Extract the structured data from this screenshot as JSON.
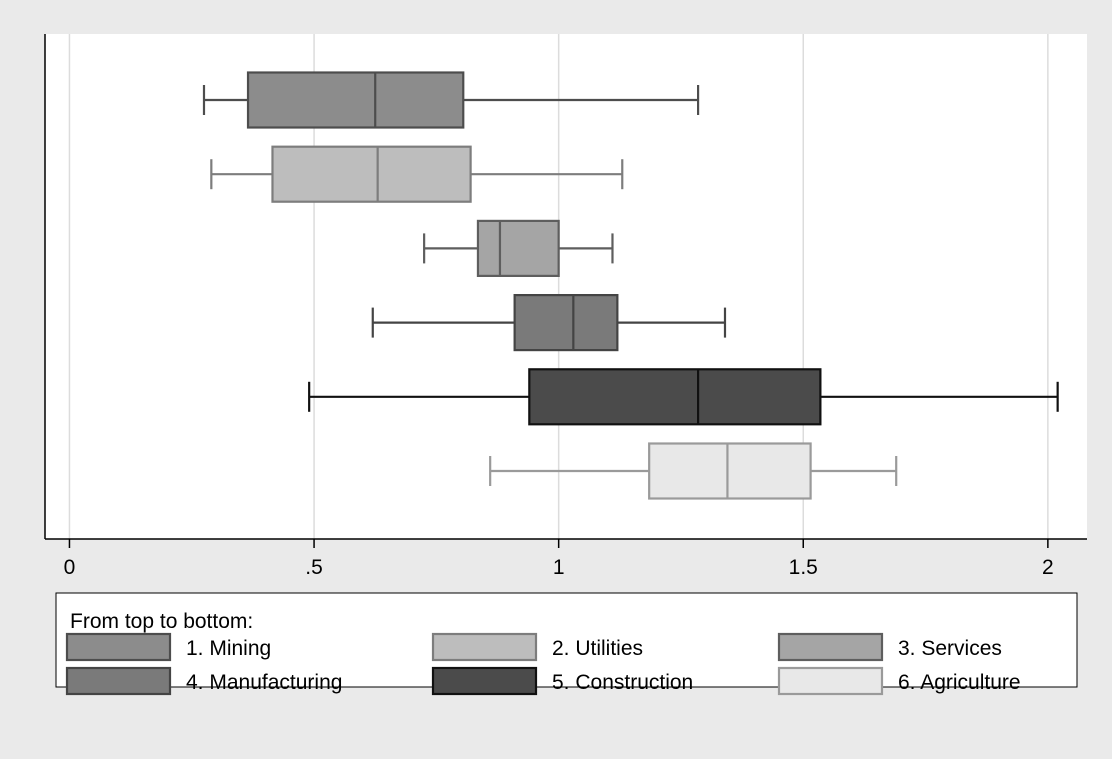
{
  "chart_data": {
    "type": "boxplot",
    "orientation": "horizontal",
    "xlim": [
      -0.05,
      2.08
    ],
    "x_ticks": [
      {
        "value": 0,
        "label": "0"
      },
      {
        "value": 0.5,
        "label": ".5"
      },
      {
        "value": 1,
        "label": "1"
      },
      {
        "value": 1.5,
        "label": "1.5"
      },
      {
        "value": 2,
        "label": "2"
      }
    ],
    "grid": true,
    "legend": {
      "placement": "bottom",
      "title": "From top to bottom:",
      "columns": 3
    },
    "series": [
      {
        "name": "1. Mining",
        "whisker_low": 0.275,
        "q1": 0.365,
        "median": 0.625,
        "q3": 0.805,
        "whisker_high": 1.285,
        "fill": "#8c8c8c",
        "stroke": "#4d4d4d"
      },
      {
        "name": "2. Utilities",
        "whisker_low": 0.29,
        "q1": 0.415,
        "median": 0.63,
        "q3": 0.82,
        "whisker_high": 1.13,
        "fill": "#bdbdbd",
        "stroke": "#7d7d7d"
      },
      {
        "name": "3. Services",
        "whisker_low": 0.725,
        "q1": 0.835,
        "median": 0.88,
        "q3": 1.0,
        "whisker_high": 1.11,
        "fill": "#a5a5a5",
        "stroke": "#5e5e5e"
      },
      {
        "name": "4. Manufacturing",
        "whisker_low": 0.62,
        "q1": 0.91,
        "median": 1.03,
        "q3": 1.12,
        "whisker_high": 1.34,
        "fill": "#7a7a7a",
        "stroke": "#444444"
      },
      {
        "name": "5. Construction",
        "whisker_low": 0.49,
        "q1": 0.94,
        "median": 1.285,
        "q3": 1.535,
        "whisker_high": 2.02,
        "fill": "#4b4b4b",
        "stroke": "#111111"
      },
      {
        "name": "6. Agriculture",
        "whisker_low": 0.86,
        "q1": 1.185,
        "median": 1.345,
        "q3": 1.515,
        "whisker_high": 1.69,
        "fill": "#e8e8e8",
        "stroke": "#9a9a9a"
      }
    ]
  }
}
